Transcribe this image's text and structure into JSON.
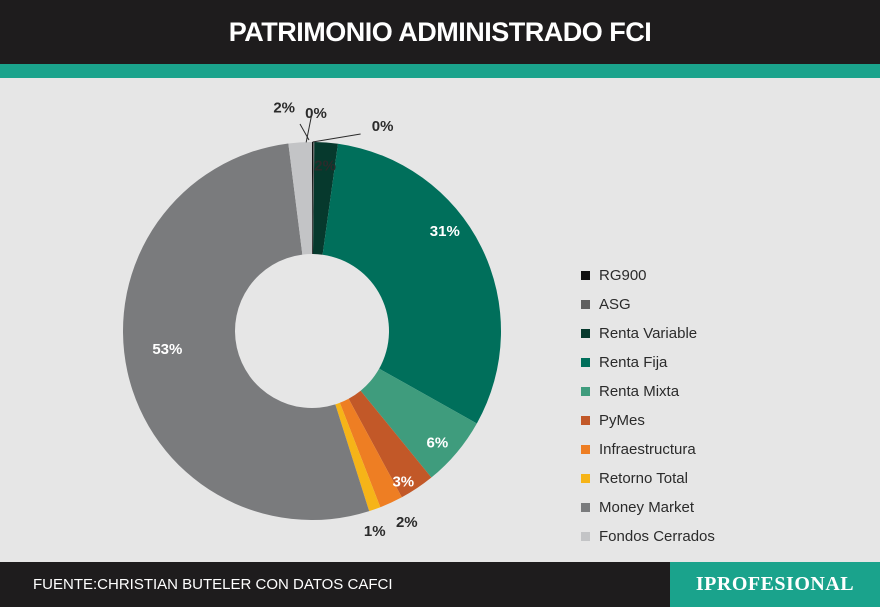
{
  "header": {
    "title": "PATRIMONIO ADMINISTRADO FCI"
  },
  "footer": {
    "source": "FUENTE:CHRISTIAN BUTELER CON DATOS CAFCI",
    "brand": "IPROFESIONAL"
  },
  "colors": {
    "header_bg": "#1e1c1d",
    "accent": "#1aa38c",
    "background": "#e6e6e6"
  },
  "chart_data": {
    "type": "pie",
    "title": "PATRIMONIO ADMINISTRADO FCI",
    "donut": true,
    "legend_position": "right",
    "series": [
      {
        "name": "RG900",
        "value": 0.1,
        "label": "0%",
        "color": "#111111"
      },
      {
        "name": "ASG",
        "value": 0.1,
        "label": "0%",
        "color": "#5f5f5f"
      },
      {
        "name": "Renta Variable",
        "value": 2,
        "label": "2%",
        "color": "#06392d"
      },
      {
        "name": "Renta Fija",
        "value": 31,
        "label": "31%",
        "color": "#006f5b"
      },
      {
        "name": "Renta Mixta",
        "value": 6,
        "label": "6%",
        "color": "#3f9c7d"
      },
      {
        "name": "PyMes",
        "value": 3,
        "label": "3%",
        "color": "#c25828"
      },
      {
        "name": "Infraestructura",
        "value": 2,
        "label": "2%",
        "color": "#ee7e23"
      },
      {
        "name": "Retorno Total",
        "value": 1,
        "label": "1%",
        "color": "#f6b418"
      },
      {
        "name": "Money Market",
        "value": 53,
        "label": "53%",
        "color": "#7a7b7d"
      },
      {
        "name": "Fondos Cerrados",
        "value": 2,
        "label": "2%",
        "color": "#c3c4c6"
      }
    ]
  }
}
